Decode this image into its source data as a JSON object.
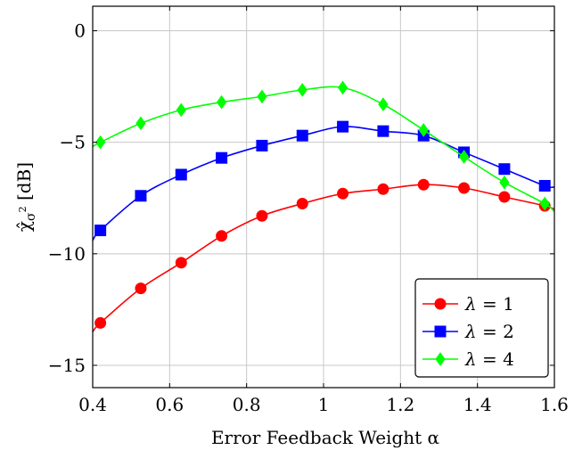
{
  "chart_data": {
    "type": "line",
    "xlabel": "Error Feedback Weight α",
    "ylabel": "χ̂σ² [dB]",
    "ylabel_parts": {
      "main": "χ̂",
      "sub": "σ",
      "subsup": "2",
      "rest": " [dB]"
    },
    "xlim": [
      0.4,
      1.6
    ],
    "ylim": [
      -16,
      1.1
    ],
    "x_ticks": [
      0.4,
      0.6,
      0.8,
      1.0,
      1.2,
      1.4,
      1.6
    ],
    "x_tick_labels": [
      "0.4",
      "0.6",
      "0.8",
      "1",
      "1.2",
      "1.4",
      "1.6"
    ],
    "y_ticks": [
      0,
      -5,
      -10,
      -15
    ],
    "y_tick_labels": [
      "0",
      "−5",
      "−10",
      "−15"
    ],
    "grid": true,
    "legend_position": "bottom-right",
    "x": [
      0.42,
      0.525,
      0.63,
      0.735,
      0.84,
      0.945,
      1.05,
      1.155,
      1.26,
      1.365,
      1.47,
      1.575
    ],
    "series": [
      {
        "name": "λ = 1",
        "name_parts": {
          "sym": "λ",
          "eq": " = 1"
        },
        "color": "#ff0000",
        "marker": "circle",
        "start": [
          0.4,
          -13.5
        ],
        "end": [
          1.6,
          -8.0
        ],
        "values": [
          -13.1,
          -11.55,
          -10.4,
          -9.2,
          -8.3,
          -7.75,
          -7.3,
          -7.1,
          -6.9,
          -7.05,
          -7.45,
          -7.85
        ]
      },
      {
        "name": "λ = 2",
        "name_parts": {
          "sym": "λ",
          "eq": " = 2"
        },
        "color": "#0000ff",
        "marker": "square",
        "start": [
          0.4,
          -9.4
        ],
        "end": [
          1.6,
          -7.0
        ],
        "values": [
          -8.95,
          -7.4,
          -6.45,
          -5.7,
          -5.15,
          -4.7,
          -4.3,
          -4.5,
          -4.7,
          -5.45,
          -6.2,
          -6.95
        ]
      },
      {
        "name": "λ = 4",
        "name_parts": {
          "sym": "λ",
          "eq": " = 4"
        },
        "color": "#00ff00",
        "marker": "diamond",
        "start": [
          0.4,
          -5.2
        ],
        "end": [
          1.6,
          -8.1
        ],
        "values": [
          -5.0,
          -4.15,
          -3.55,
          -3.2,
          -2.95,
          -2.65,
          -2.55,
          -3.3,
          -4.45,
          -5.65,
          -6.8,
          -7.75
        ]
      }
    ]
  }
}
